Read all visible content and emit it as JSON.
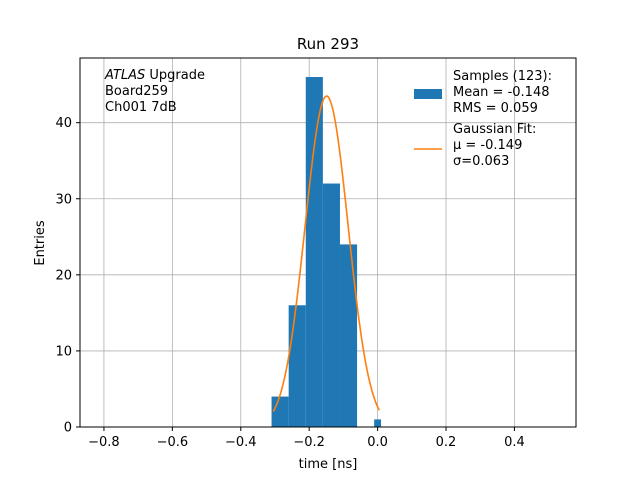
{
  "chart_data": {
    "type": "bar",
    "title": "Run 293",
    "xlabel": "time [ns]",
    "ylabel": "Entries",
    "xlim": [
      -0.87,
      0.58
    ],
    "ylim": [
      0,
      48.5
    ],
    "grid": true,
    "x_ticks": [
      -0.8,
      -0.6,
      -0.4,
      -0.2,
      0.0,
      0.2,
      0.4
    ],
    "x_tick_labels": [
      "−0.8",
      "−0.6",
      "−0.4",
      "−0.2",
      "0.0",
      "0.2",
      "0.4"
    ],
    "y_ticks": [
      0,
      10,
      20,
      30,
      40
    ],
    "y_tick_labels": [
      "0",
      "10",
      "20",
      "30",
      "40"
    ],
    "bins": [
      {
        "x0": -0.31,
        "x1": -0.26,
        "count": 4
      },
      {
        "x0": -0.26,
        "x1": -0.21,
        "count": 16
      },
      {
        "x0": -0.21,
        "x1": -0.16,
        "count": 46
      },
      {
        "x0": -0.16,
        "x1": -0.11,
        "count": 32
      },
      {
        "x0": -0.11,
        "x1": -0.06,
        "count": 24
      },
      {
        "x0": -0.06,
        "x1": -0.01,
        "count": 0
      },
      {
        "x0": -0.01,
        "x1": 0.01,
        "count": 1
      }
    ],
    "fit": {
      "mu": -0.149,
      "sigma": 0.063,
      "amplitude": 43.5,
      "x_range": [
        -0.305,
        0.005
      ]
    },
    "colors": {
      "hist": "#1f77b4",
      "fit": "#ff7f0e",
      "grid": "#b0b0b0"
    },
    "legend": {
      "position": "top-right",
      "entries": [
        {
          "kind": "patch",
          "lines": [
            "Samples (123):",
            " Mean = -0.148",
            " RMS = 0.059"
          ]
        },
        {
          "kind": "line",
          "lines": [
            "Gaussian Fit:",
            " μ = -0.149",
            " σ=0.063"
          ]
        }
      ]
    },
    "annotation": {
      "lines": [
        {
          "italic": "ATLAS",
          "rest": " Upgrade"
        },
        {
          "italic": "",
          "rest": " Board259"
        },
        {
          "italic": "",
          "rest": " Ch001 7dB"
        }
      ]
    }
  }
}
